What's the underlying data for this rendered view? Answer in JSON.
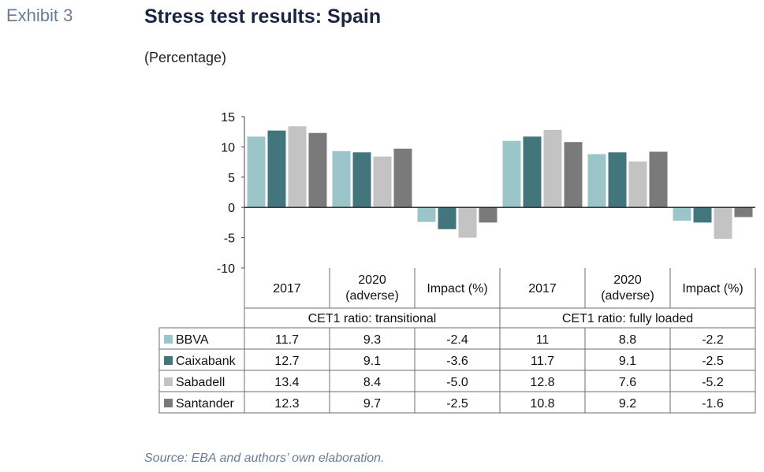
{
  "exhibit_label": "Exhibit 3",
  "title": "Stress test results: Spain",
  "subtitle": "(Percentage)",
  "source": "Source: EBA and authors’ own elaboration.",
  "colors": {
    "BBVA": "#9cc5c9",
    "Caixabank": "#42767c",
    "Sabadell": "#c3c3c3",
    "Santander": "#7a7a7a"
  },
  "chart_data": {
    "type": "bar",
    "categories": [
      "2017",
      "2020 (adverse)",
      "Impact (%)",
      "2017",
      "2020 (adverse)",
      "Impact (%)"
    ],
    "category_labels": [
      [
        "2017"
      ],
      [
        "2020",
        "(adverse)"
      ],
      [
        "Impact (%)"
      ],
      [
        "2017"
      ],
      [
        "2020",
        "(adverse)"
      ],
      [
        "Impact (%)"
      ]
    ],
    "groups": [
      "CET1 ratio: transitional",
      "CET1 ratio: fully loaded"
    ],
    "series": [
      {
        "name": "BBVA",
        "values": [
          11.7,
          9.3,
          -2.4,
          11,
          8.8,
          -2.2
        ]
      },
      {
        "name": "Caixabank",
        "values": [
          12.7,
          9.1,
          -3.6,
          11.7,
          9.1,
          -2.5
        ]
      },
      {
        "name": "Sabadell",
        "values": [
          13.4,
          8.4,
          -5.0,
          12.8,
          7.6,
          -5.2
        ]
      },
      {
        "name": "Santander",
        "values": [
          12.3,
          9.7,
          -2.5,
          10.8,
          9.2,
          -1.6
        ]
      }
    ],
    "table_values": [
      [
        "11.7",
        "9.3",
        "-2.4",
        "11",
        "8.8",
        "-2.2"
      ],
      [
        "12.7",
        "9.1",
        "-3.6",
        "11.7",
        "9.1",
        "-2.5"
      ],
      [
        "13.4",
        "8.4",
        "-5.0",
        "12.8",
        "7.6",
        "-5.2"
      ],
      [
        "12.3",
        "9.7",
        "-2.5",
        "10.8",
        "9.2",
        "-1.6"
      ]
    ],
    "yticks": [
      "15",
      "10",
      "5",
      "0",
      "-5",
      "-10"
    ],
    "ylim": [
      -10,
      15
    ],
    "legend_placement": "data-table"
  }
}
